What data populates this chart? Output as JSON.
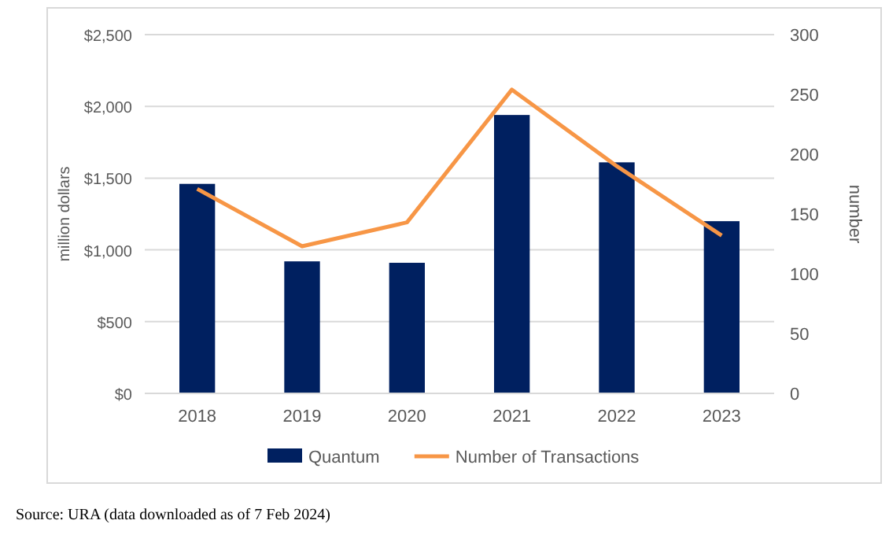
{
  "chart_data": {
    "type": "bar",
    "categories": [
      "2018",
      "2019",
      "2020",
      "2021",
      "2022",
      "2023"
    ],
    "ylabel": "million dollars",
    "y2label": "number",
    "series": [
      {
        "name": "Quantum",
        "color": "#002060",
        "values": [
          1460,
          920,
          910,
          1940,
          1610,
          1200
        ]
      },
      {
        "name": "Number of Transactions",
        "type": "line",
        "axis": "y2",
        "color": "#f79646",
        "values": [
          171,
          123,
          143,
          254,
          190,
          132
        ]
      }
    ],
    "ylim": [
      0,
      2500
    ],
    "yticks": [
      {
        "value": 0,
        "label": "$0"
      },
      {
        "value": 500,
        "label": "$500"
      },
      {
        "value": 1000,
        "label": "$1,000"
      },
      {
        "value": 1500,
        "label": "$1,500"
      },
      {
        "value": 2000,
        "label": "$2,000"
      },
      {
        "value": 2500,
        "label": "$2,500"
      }
    ],
    "y2lim": [
      0,
      300
    ],
    "y2ticks": [
      0,
      50,
      100,
      150,
      200,
      250,
      300
    ],
    "grid": "y",
    "legend": "bottom",
    "marker": "none",
    "annotations": [
      "Source: URA (data downloaded as of 7 Feb 2024)"
    ]
  }
}
